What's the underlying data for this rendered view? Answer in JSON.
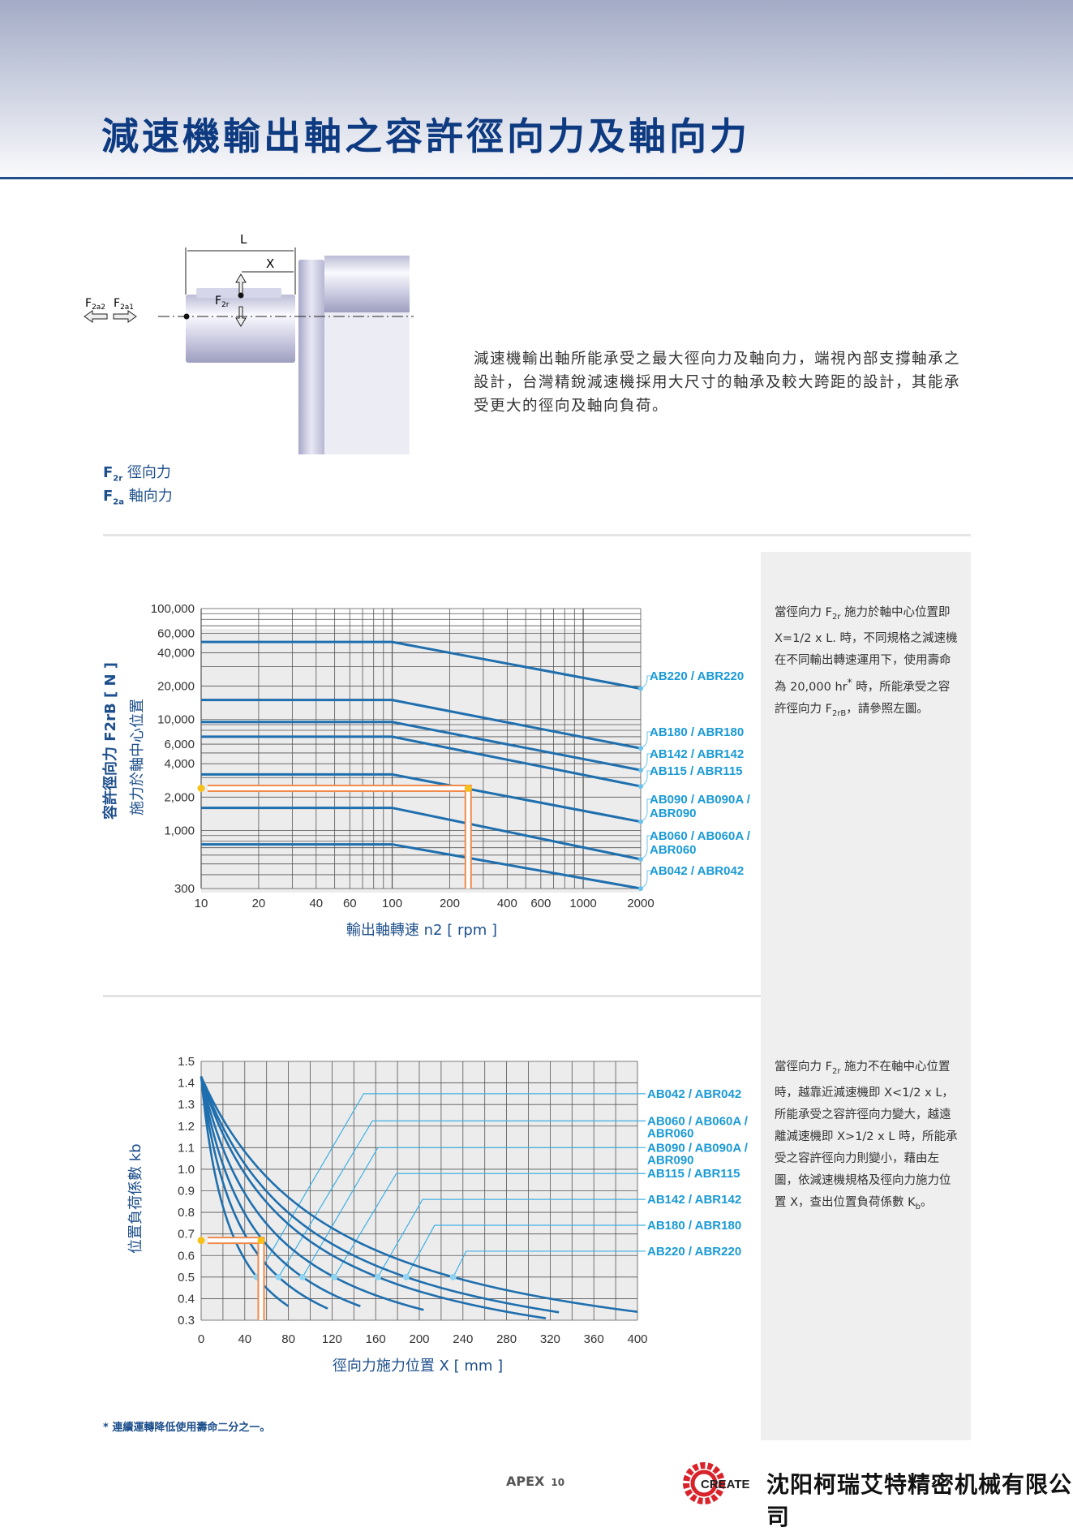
{
  "header": {
    "title": "減速機輸出軸之容許徑向力及軸向力"
  },
  "diagram": {
    "L": "L",
    "X": "X",
    "F2r": "F",
    "F2r_sub": "2r",
    "F2a2": "F",
    "F2a2_sub": "2a2",
    "F2a1": "F",
    "F2a1_sub": "2a1",
    "legend": [
      {
        "sym": "F",
        "sub": "2r",
        "text": "徑向力"
      },
      {
        "sym": "F",
        "sub": "2a",
        "text": "軸向力"
      }
    ]
  },
  "intro": "減速機輸出軸所能承受之最大徑向力及軸向力，端視內部支撐軸承之設計，台灣精銳減速機採用大尺寸的軸承及較大跨距的設計，其能承受更大的徑向及軸向負荷。",
  "side1": {
    "a": "當徑向力 F",
    "a_sub": "2r",
    "b": " 施力於軸中心位置即 X=1/2 x L. 時，不同規格之減速機在不同輸出轉速運用下，使用壽命為 20,000 hr",
    "star": "*",
    "c": " 時，所能承受之容許徑向力 F",
    "c_sub": "2rB",
    "d": "，請參照左圖。"
  },
  "side2": {
    "a": "當徑向力 F",
    "a_sub": "2r",
    "b": " 施力不在軸中心位置時，越靠近減速機即 X<1/2 x L，所能承受之容許徑向力變大，越遠離減速機即 X>1/2 x L 時，所能承受之容許徑向力則變小，藉由左圖，依減速機規格及徑向力施力位置 X，查出位置負荷係數 K",
    "b_sub": "b",
    "c": "。"
  },
  "footnote": "* 連續運轉降低使用壽命二分之一。",
  "footer": {
    "brand": "APEX",
    "page": "10",
    "logo_text": "CREATE",
    "company": "沈阳柯瑞艾特精密机械有限公司"
  },
  "chart_data": [
    {
      "type": "line",
      "xscale": "log",
      "yscale": "log",
      "grid": true,
      "ylabel": "容許徑向力 F2rB [ N ]",
      "ylabel2": "施力於軸中心位置",
      "xlabel": "輸出軸轉速 n2 [ rpm ]",
      "xlim": [
        10,
        2000
      ],
      "ylim": [
        300,
        100000
      ],
      "xticks": [
        "10",
        "20",
        "40",
        "60",
        "100",
        "200",
        "400",
        "600",
        "1000",
        "2000"
      ],
      "yticks": [
        "100,000",
        "60,000",
        "40,000",
        "20,000",
        "10,000",
        "6,000",
        "4,000",
        "2,000",
        "1,000",
        "300"
      ],
      "series": [
        {
          "name": "AB220 / ABR220",
          "points": [
            [
              10,
              50000
            ],
            [
              100,
              50000
            ],
            [
              2000,
              19000
            ]
          ]
        },
        {
          "name": "AB180 / ABR180",
          "points": [
            [
              10,
              15000
            ],
            [
              100,
              15000
            ],
            [
              2000,
              5500
            ]
          ]
        },
        {
          "name": "AB142 / ABR142",
          "points": [
            [
              10,
              9500
            ],
            [
              100,
              9500
            ],
            [
              2000,
              3500
            ]
          ]
        },
        {
          "name": "AB115 / ABR115",
          "points": [
            [
              10,
              7000
            ],
            [
              100,
              7000
            ],
            [
              2000,
              2500
            ]
          ]
        },
        {
          "name": "AB090 / AB090A / ABR090",
          "points": [
            [
              10,
              3200
            ],
            [
              100,
              3200
            ],
            [
              2000,
              1200
            ]
          ]
        },
        {
          "name": "AB060 / AB060A / ABR060",
          "points": [
            [
              10,
              1600
            ],
            [
              100,
              1600
            ],
            [
              2000,
              550
            ]
          ]
        },
        {
          "name": "AB042 / ABR042",
          "points": [
            [
              10,
              750
            ],
            [
              100,
              750
            ],
            [
              2000,
              300
            ]
          ]
        }
      ],
      "example": {
        "x": 250,
        "y": 2400
      },
      "colors": {
        "line": "#1f6fae",
        "label": "#1a9ad6",
        "arrow": "#f08a4b"
      }
    },
    {
      "type": "line",
      "grid": true,
      "ylabel": "位置負荷係數 kb",
      "xlabel": "徑向力施力位置 X [ mm ]",
      "xlim": [
        0,
        400
      ],
      "ylim": [
        0.3,
        1.5
      ],
      "xticks": [
        "0",
        "40",
        "80",
        "120",
        "160",
        "200",
        "240",
        "280",
        "320",
        "360",
        "400"
      ],
      "yticks": [
        "1.5",
        "1.4",
        "1.3",
        "1.2",
        "1.1",
        "1.0",
        "0.9",
        "0.8",
        "0.7",
        "0.6",
        "0.5",
        "0.4",
        "0.3"
      ],
      "kb_at_x0": 1.43,
      "series": [
        {
          "name": "AB042 / ABR042",
          "x_at_kb_0_5": 51,
          "x_end": 80
        },
        {
          "name": "AB060 / AB060A / ABR060",
          "x_at_kb_0_5": 71,
          "x_end": 116
        },
        {
          "name": "AB090 / AB090A / ABR090",
          "x_at_kb_0_5": 93,
          "x_end": 147
        },
        {
          "name": "AB115 / ABR115",
          "x_at_kb_0_5": 122,
          "x_end": 204
        },
        {
          "name": "AB142 / ABR142",
          "x_at_kb_0_5": 162,
          "x_end": 317
        },
        {
          "name": "AB180 / ABR180",
          "x_at_kb_0_5": 188,
          "x_end": 329
        },
        {
          "name": "AB220 / ABR220",
          "x_at_kb_0_5": 231,
          "x_end": 400
        }
      ],
      "example": {
        "x": 55,
        "y": 0.67
      }
    }
  ]
}
